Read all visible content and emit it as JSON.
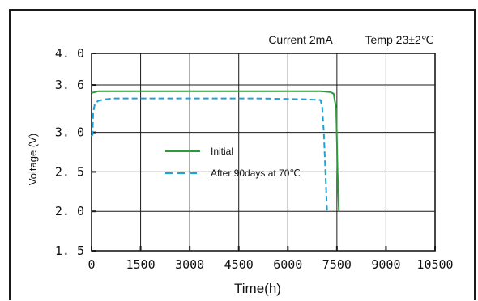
{
  "chart_data": {
    "type": "line",
    "title": "",
    "conditions": {
      "current": "Current 2mA",
      "temp": "Temp 23±2℃"
    },
    "xlabel": "Time(h)",
    "ylabel": "Voltage (V)",
    "xlim": [
      0,
      10500
    ],
    "ylim": [
      1.5,
      4.0
    ],
    "x_ticks": [
      0,
      1500,
      3000,
      4500,
      6000,
      7500,
      9000,
      10500
    ],
    "y_ticks": [
      1.5,
      2.0,
      2.5,
      3.0,
      3.6,
      4.0
    ],
    "y_tick_labels": [
      "1. 5",
      "2. 0",
      "2. 5",
      "3. 0",
      "3. 6",
      "4. 0"
    ],
    "grid": true,
    "legend_position": "center-left",
    "series": [
      {
        "name": "Initial",
        "color": "#2e9a3a",
        "style": "solid",
        "x": [
          0,
          200,
          1000,
          3000,
          5000,
          7000,
          7300,
          7400,
          7480,
          7520,
          7560
        ],
        "y": [
          3.5,
          3.52,
          3.52,
          3.52,
          3.52,
          3.52,
          3.51,
          3.49,
          3.3,
          2.5,
          2.0
        ]
      },
      {
        "name": "After 90days at 70℃",
        "color": "#1aa3d9",
        "style": "dashed",
        "x": [
          0,
          30,
          50,
          100,
          200,
          400,
          700,
          1500,
          3000,
          5000,
          6500,
          7000,
          7050,
          7100,
          7150,
          7200
        ],
        "y": [
          2.95,
          2.97,
          3.25,
          3.36,
          3.4,
          3.42,
          3.43,
          3.43,
          3.43,
          3.43,
          3.42,
          3.41,
          3.32,
          3.0,
          2.5,
          2.0
        ]
      }
    ]
  }
}
